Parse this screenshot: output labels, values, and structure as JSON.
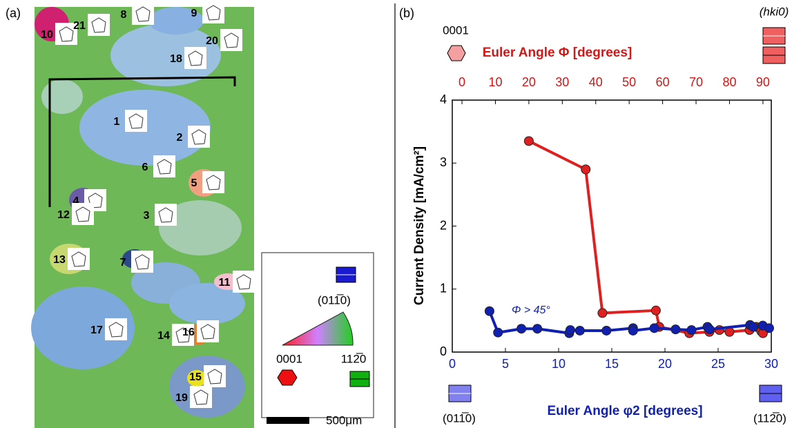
{
  "panel_labels": [
    "(a)",
    "(b)"
  ],
  "map": {
    "grain_labels": [
      "1",
      "2",
      "3",
      "4",
      "5",
      "6",
      "7",
      "8",
      "9",
      "10",
      "11",
      "12",
      "13",
      "14",
      "15",
      "16",
      "17",
      "18",
      "19",
      "20",
      "21"
    ],
    "legend": {
      "top": "(011̅0)",
      "left": "0001",
      "right": "112̅0"
    },
    "scale_bar": "500μm"
  },
  "chart_data": {
    "type": "line",
    "ylabel": "Current Density [mA/cm²]",
    "ylim": [
      0,
      4
    ],
    "yticks": [
      0,
      1,
      2,
      3,
      4
    ],
    "xlabel": "Euler Angle φ2  [degrees]",
    "xlim": [
      0,
      30
    ],
    "xticks": [
      0,
      5,
      10,
      15,
      20,
      25,
      30
    ],
    "x2label": "Euler Angle Φ  [degrees]",
    "x2lim": [
      -2.9,
      92.5
    ],
    "x2ticks": [
      0,
      10,
      20,
      30,
      40,
      50,
      60,
      70,
      80,
      90
    ],
    "annotation": "Φ > 45°",
    "end_labels": {
      "top_left": "0001",
      "top_right": "(hki0)",
      "bottom_left": "(011̅0)",
      "bottom_right": "(112̅0)"
    },
    "series": [
      {
        "color": "#e02020",
        "axis": "x2",
        "x": [
          20,
          37,
          42,
          58,
          59,
          68,
          74,
          77,
          80,
          86,
          88,
          89,
          89.5,
          90
        ],
        "values": [
          3.35,
          2.9,
          0.62,
          0.66,
          0.4,
          0.3,
          0.32,
          0.35,
          0.32,
          0.35,
          0.4,
          0.38,
          0.33,
          0.3
        ]
      },
      {
        "color": "#1020b0",
        "x": [
          3.5,
          4.3,
          6.5,
          8,
          11,
          11.1,
          12,
          14.5,
          17,
          17,
          19,
          21,
          22.5,
          24,
          24.2,
          28,
          28.3,
          29.2,
          29.8
        ],
        "values": [
          0.65,
          0.31,
          0.37,
          0.37,
          0.3,
          0.35,
          0.34,
          0.34,
          0.38,
          0.34,
          0.38,
          0.36,
          0.35,
          0.4,
          0.36,
          0.43,
          0.4,
          0.42,
          0.38
        ]
      }
    ]
  }
}
